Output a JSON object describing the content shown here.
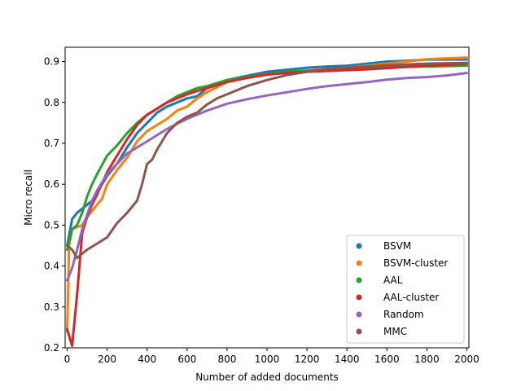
{
  "chart_data": {
    "type": "line",
    "xlabel": "Number of added documents",
    "ylabel": "Micro recall",
    "xlim": [
      -10,
      2010
    ],
    "ylim": [
      0.2,
      0.935
    ],
    "xticks": [
      0,
      200,
      400,
      600,
      800,
      1000,
      1200,
      1400,
      1600,
      1800,
      2000
    ],
    "yticks": [
      0.2,
      0.3,
      0.4,
      0.5,
      0.6,
      0.7,
      0.8,
      0.9
    ],
    "ytick_labels": [
      "0.2",
      "0.3",
      "0.4",
      "0.5",
      "0.6",
      "0.7",
      "0.8",
      "0.9"
    ],
    "grid": false,
    "legend_position": "lower-right",
    "series": [
      {
        "name": "BSVM",
        "color": "#1f77b4",
        "x": [
          0,
          25,
          50,
          75,
          100,
          125,
          150,
          200,
          250,
          300,
          350,
          400,
          450,
          500,
          550,
          600,
          650,
          700,
          800,
          900,
          1000,
          1100,
          1200,
          1300,
          1400,
          1500,
          1600,
          1700,
          1800,
          1900,
          2000
        ],
        "y": [
          0.45,
          0.515,
          0.53,
          0.54,
          0.55,
          0.56,
          0.58,
          0.62,
          0.65,
          0.69,
          0.725,
          0.75,
          0.775,
          0.79,
          0.8,
          0.81,
          0.815,
          0.835,
          0.855,
          0.865,
          0.875,
          0.88,
          0.885,
          0.888,
          0.89,
          0.895,
          0.9,
          0.902,
          0.905,
          0.905,
          0.905
        ]
      },
      {
        "name": "BSVM-cluster",
        "color": "#ff7f0e",
        "x": [
          0,
          10,
          25,
          50,
          75,
          100,
          125,
          150,
          175,
          200,
          250,
          300,
          350,
          400,
          450,
          500,
          550,
          600,
          650,
          700,
          800,
          900,
          1000,
          1100,
          1200,
          1300,
          1400,
          1500,
          1600,
          1700,
          1800,
          1900,
          2000
        ],
        "y": [
          0.24,
          0.45,
          0.49,
          0.495,
          0.5,
          0.52,
          0.535,
          0.55,
          0.565,
          0.6,
          0.635,
          0.665,
          0.705,
          0.73,
          0.745,
          0.76,
          0.78,
          0.79,
          0.81,
          0.825,
          0.85,
          0.86,
          0.868,
          0.873,
          0.878,
          0.882,
          0.885,
          0.89,
          0.895,
          0.9,
          0.906,
          0.908,
          0.91
        ]
      },
      {
        "name": "AAL",
        "color": "#2ca02c",
        "x": [
          0,
          25,
          50,
          75,
          100,
          125,
          150,
          200,
          250,
          300,
          350,
          400,
          450,
          500,
          550,
          600,
          650,
          700,
          800,
          900,
          1000,
          1100,
          1200,
          1300,
          1400,
          1500,
          1600,
          1700,
          1800,
          1900,
          2000
        ],
        "y": [
          0.44,
          0.49,
          0.5,
          0.53,
          0.57,
          0.6,
          0.625,
          0.67,
          0.695,
          0.725,
          0.75,
          0.77,
          0.785,
          0.8,
          0.815,
          0.825,
          0.835,
          0.84,
          0.855,
          0.862,
          0.87,
          0.875,
          0.878,
          0.88,
          0.882,
          0.884,
          0.886,
          0.887,
          0.888,
          0.889,
          0.89
        ]
      },
      {
        "name": "AAL-cluster",
        "color": "#d62728",
        "x": [
          0,
          25,
          50,
          75,
          100,
          125,
          150,
          200,
          250,
          300,
          350,
          400,
          450,
          500,
          550,
          600,
          650,
          700,
          800,
          900,
          1000,
          1100,
          1200,
          1300,
          1400,
          1500,
          1600,
          1700,
          1800,
          1900,
          2000
        ],
        "y": [
          0.245,
          0.205,
          0.33,
          0.48,
          0.52,
          0.55,
          0.575,
          0.63,
          0.67,
          0.71,
          0.745,
          0.77,
          0.785,
          0.8,
          0.81,
          0.82,
          0.828,
          0.835,
          0.85,
          0.86,
          0.868,
          0.872,
          0.875,
          0.877,
          0.879,
          0.881,
          0.884,
          0.887,
          0.89,
          0.892,
          0.895
        ]
      },
      {
        "name": "Random",
        "color": "#9467bd",
        "x": [
          0,
          25,
          50,
          75,
          100,
          125,
          150,
          200,
          250,
          300,
          350,
          400,
          450,
          500,
          550,
          600,
          650,
          700,
          800,
          900,
          1000,
          1100,
          1200,
          1300,
          1400,
          1500,
          1600,
          1700,
          1800,
          1900,
          2000
        ],
        "y": [
          0.365,
          0.395,
          0.44,
          0.49,
          0.525,
          0.56,
          0.585,
          0.625,
          0.65,
          0.675,
          0.69,
          0.705,
          0.72,
          0.735,
          0.748,
          0.76,
          0.77,
          0.78,
          0.797,
          0.808,
          0.817,
          0.825,
          0.833,
          0.84,
          0.845,
          0.85,
          0.856,
          0.86,
          0.862,
          0.866,
          0.872
        ]
      },
      {
        "name": "MMC",
        "color": "#8c564b",
        "x": [
          0,
          25,
          50,
          75,
          100,
          150,
          200,
          250,
          300,
          350,
          375,
          400,
          425,
          450,
          500,
          550,
          600,
          650,
          700,
          750,
          800,
          900,
          1000,
          1100,
          1200,
          1300,
          1400,
          1500,
          1600,
          1700,
          1800,
          1900,
          2000
        ],
        "y": [
          0.45,
          0.44,
          0.42,
          0.43,
          0.44,
          0.455,
          0.47,
          0.505,
          0.53,
          0.56,
          0.6,
          0.65,
          0.66,
          0.685,
          0.725,
          0.75,
          0.765,
          0.775,
          0.795,
          0.81,
          0.82,
          0.84,
          0.855,
          0.867,
          0.875,
          0.882,
          0.885,
          0.888,
          0.891,
          0.893,
          0.895,
          0.896,
          0.897
        ]
      }
    ]
  }
}
